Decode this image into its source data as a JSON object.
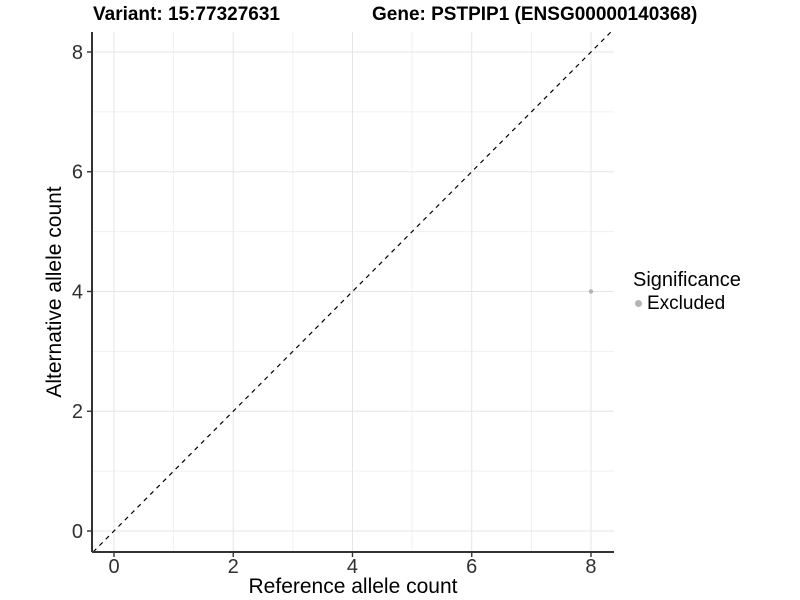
{
  "titles": {
    "left": "Variant: 15:77327631",
    "right": "Gene: PSTPIP1 (ENSG00000140368)"
  },
  "axes": {
    "x_label": "Reference allele count",
    "y_label": "Alternative allele count"
  },
  "legend": {
    "title": "Significance",
    "items": [
      {
        "label": "Excluded",
        "color": "#b4b4b4"
      }
    ]
  },
  "colors": {
    "background": "#ffffff",
    "major_grid": "#e5e5e5",
    "minor_grid": "#f0f0f0",
    "axis_line": "#333333",
    "tick_mark": "#333333",
    "tick_label": "#303030",
    "reference_line": "#000000",
    "excluded_point": "#b4b4b4"
  },
  "chart_data": {
    "type": "scatter",
    "title_left": "Variant: 15:77327631",
    "title_right": "Gene: PSTPIP1 (ENSG00000140368)",
    "xlabel": "Reference allele count",
    "ylabel": "Alternative allele count",
    "xlim": [
      -0.369,
      8.386
    ],
    "ylim": [
      -0.351,
      8.334
    ],
    "x_ticks": [
      0,
      2,
      4,
      6,
      8
    ],
    "y_ticks": [
      0,
      2,
      4,
      6,
      8
    ],
    "x_minor_ticks": [
      1,
      3,
      5,
      7
    ],
    "y_minor_ticks": [
      1,
      3,
      5,
      7
    ],
    "grid": true,
    "legend_position": "right",
    "series": [
      {
        "name": "Excluded",
        "color": "#b4b4b4",
        "points": [
          {
            "x": 8,
            "y": 4
          }
        ]
      }
    ],
    "reference_line": {
      "type": "identity",
      "style": "dashed",
      "color": "#000000"
    }
  }
}
